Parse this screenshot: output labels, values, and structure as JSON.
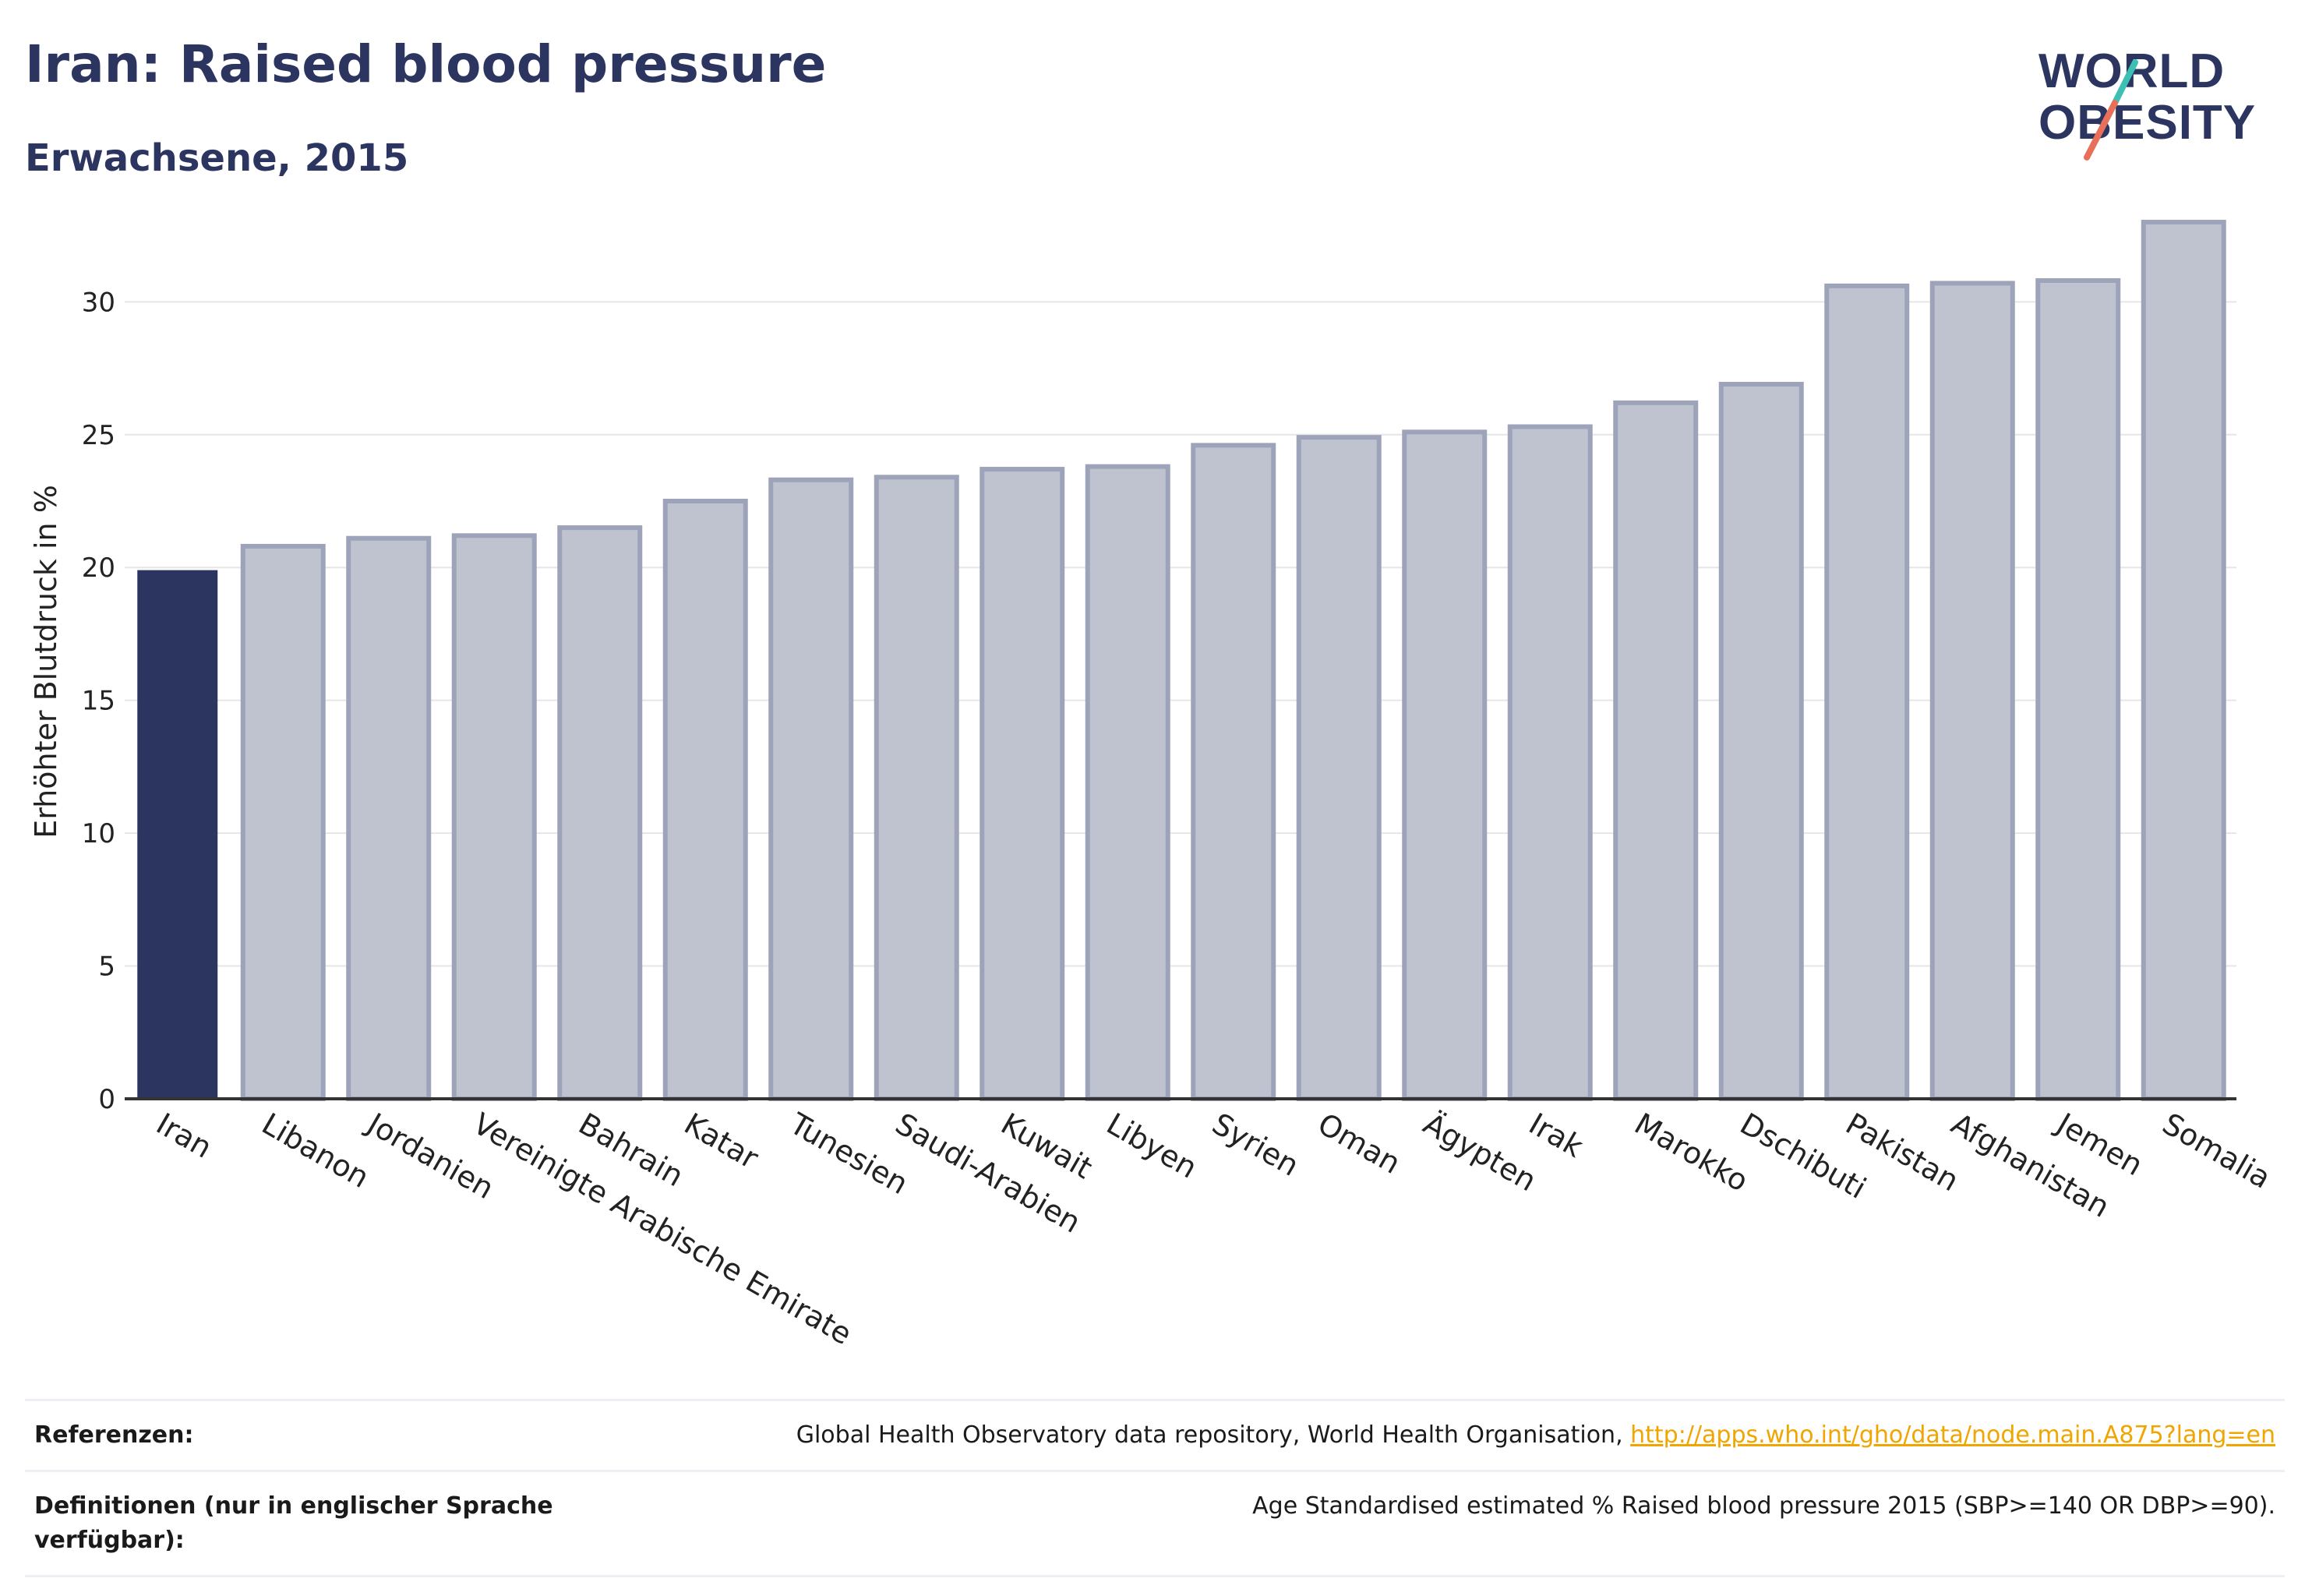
{
  "header": {
    "title": "Iran: Raised blood pressure",
    "subtitle": "Erwachsene, 2015"
  },
  "logo": {
    "line1": "WORLD",
    "line2": "OBESITY",
    "color_text": "#2c3560",
    "color_slash_top": "#3cc0b4",
    "color_slash_bottom": "#e8705a"
  },
  "colors": {
    "highlight_bar": "#2c3560",
    "other_bar_fill": "#bfc3d0",
    "other_bar_stroke": "#9da3b9",
    "grid": "#e6e6e6",
    "axis": "#333333"
  },
  "chart_data": {
    "type": "bar",
    "title": "Iran: Raised blood pressure",
    "subtitle": "Erwachsene, 2015",
    "xlabel": "",
    "ylabel": "Erhöhter Blutdruck in %",
    "ylim": [
      0,
      33.5
    ],
    "yticks": [
      0,
      5,
      10,
      15,
      20,
      25,
      30
    ],
    "highlight": "Iran",
    "categories": [
      "Iran",
      "Libanon",
      "Jordanien",
      "Vereinigte Arabische Emirate",
      "Bahrain",
      "Katar",
      "Tunesien",
      "Saudi-Arabien",
      "Kuwait",
      "Libyen",
      "Syrien",
      "Oman",
      "Ägypten",
      "Irak",
      "Marokko",
      "Dschibuti",
      "Pakistan",
      "Afghanistan",
      "Jemen",
      "Somalia"
    ],
    "values": [
      19.9,
      20.8,
      21.1,
      21.2,
      21.5,
      22.5,
      23.3,
      23.4,
      23.7,
      23.8,
      24.6,
      24.9,
      25.1,
      25.3,
      26.2,
      26.9,
      30.6,
      30.7,
      30.8,
      33.0
    ],
    "grid": true
  },
  "footer": {
    "references_label": "Referenzen:",
    "references_text": "Global Health Observatory data repository, World Health Organisation, ",
    "references_link": "http://apps.who.int/gho/data/node.main.A875?lang=en",
    "definitions_label": "Definitionen (nur in englischer Sprache verfügbar):",
    "definitions_text": "Age Standardised estimated % Raised blood pressure 2015 (SBP>=140 OR DBP>=90)."
  }
}
